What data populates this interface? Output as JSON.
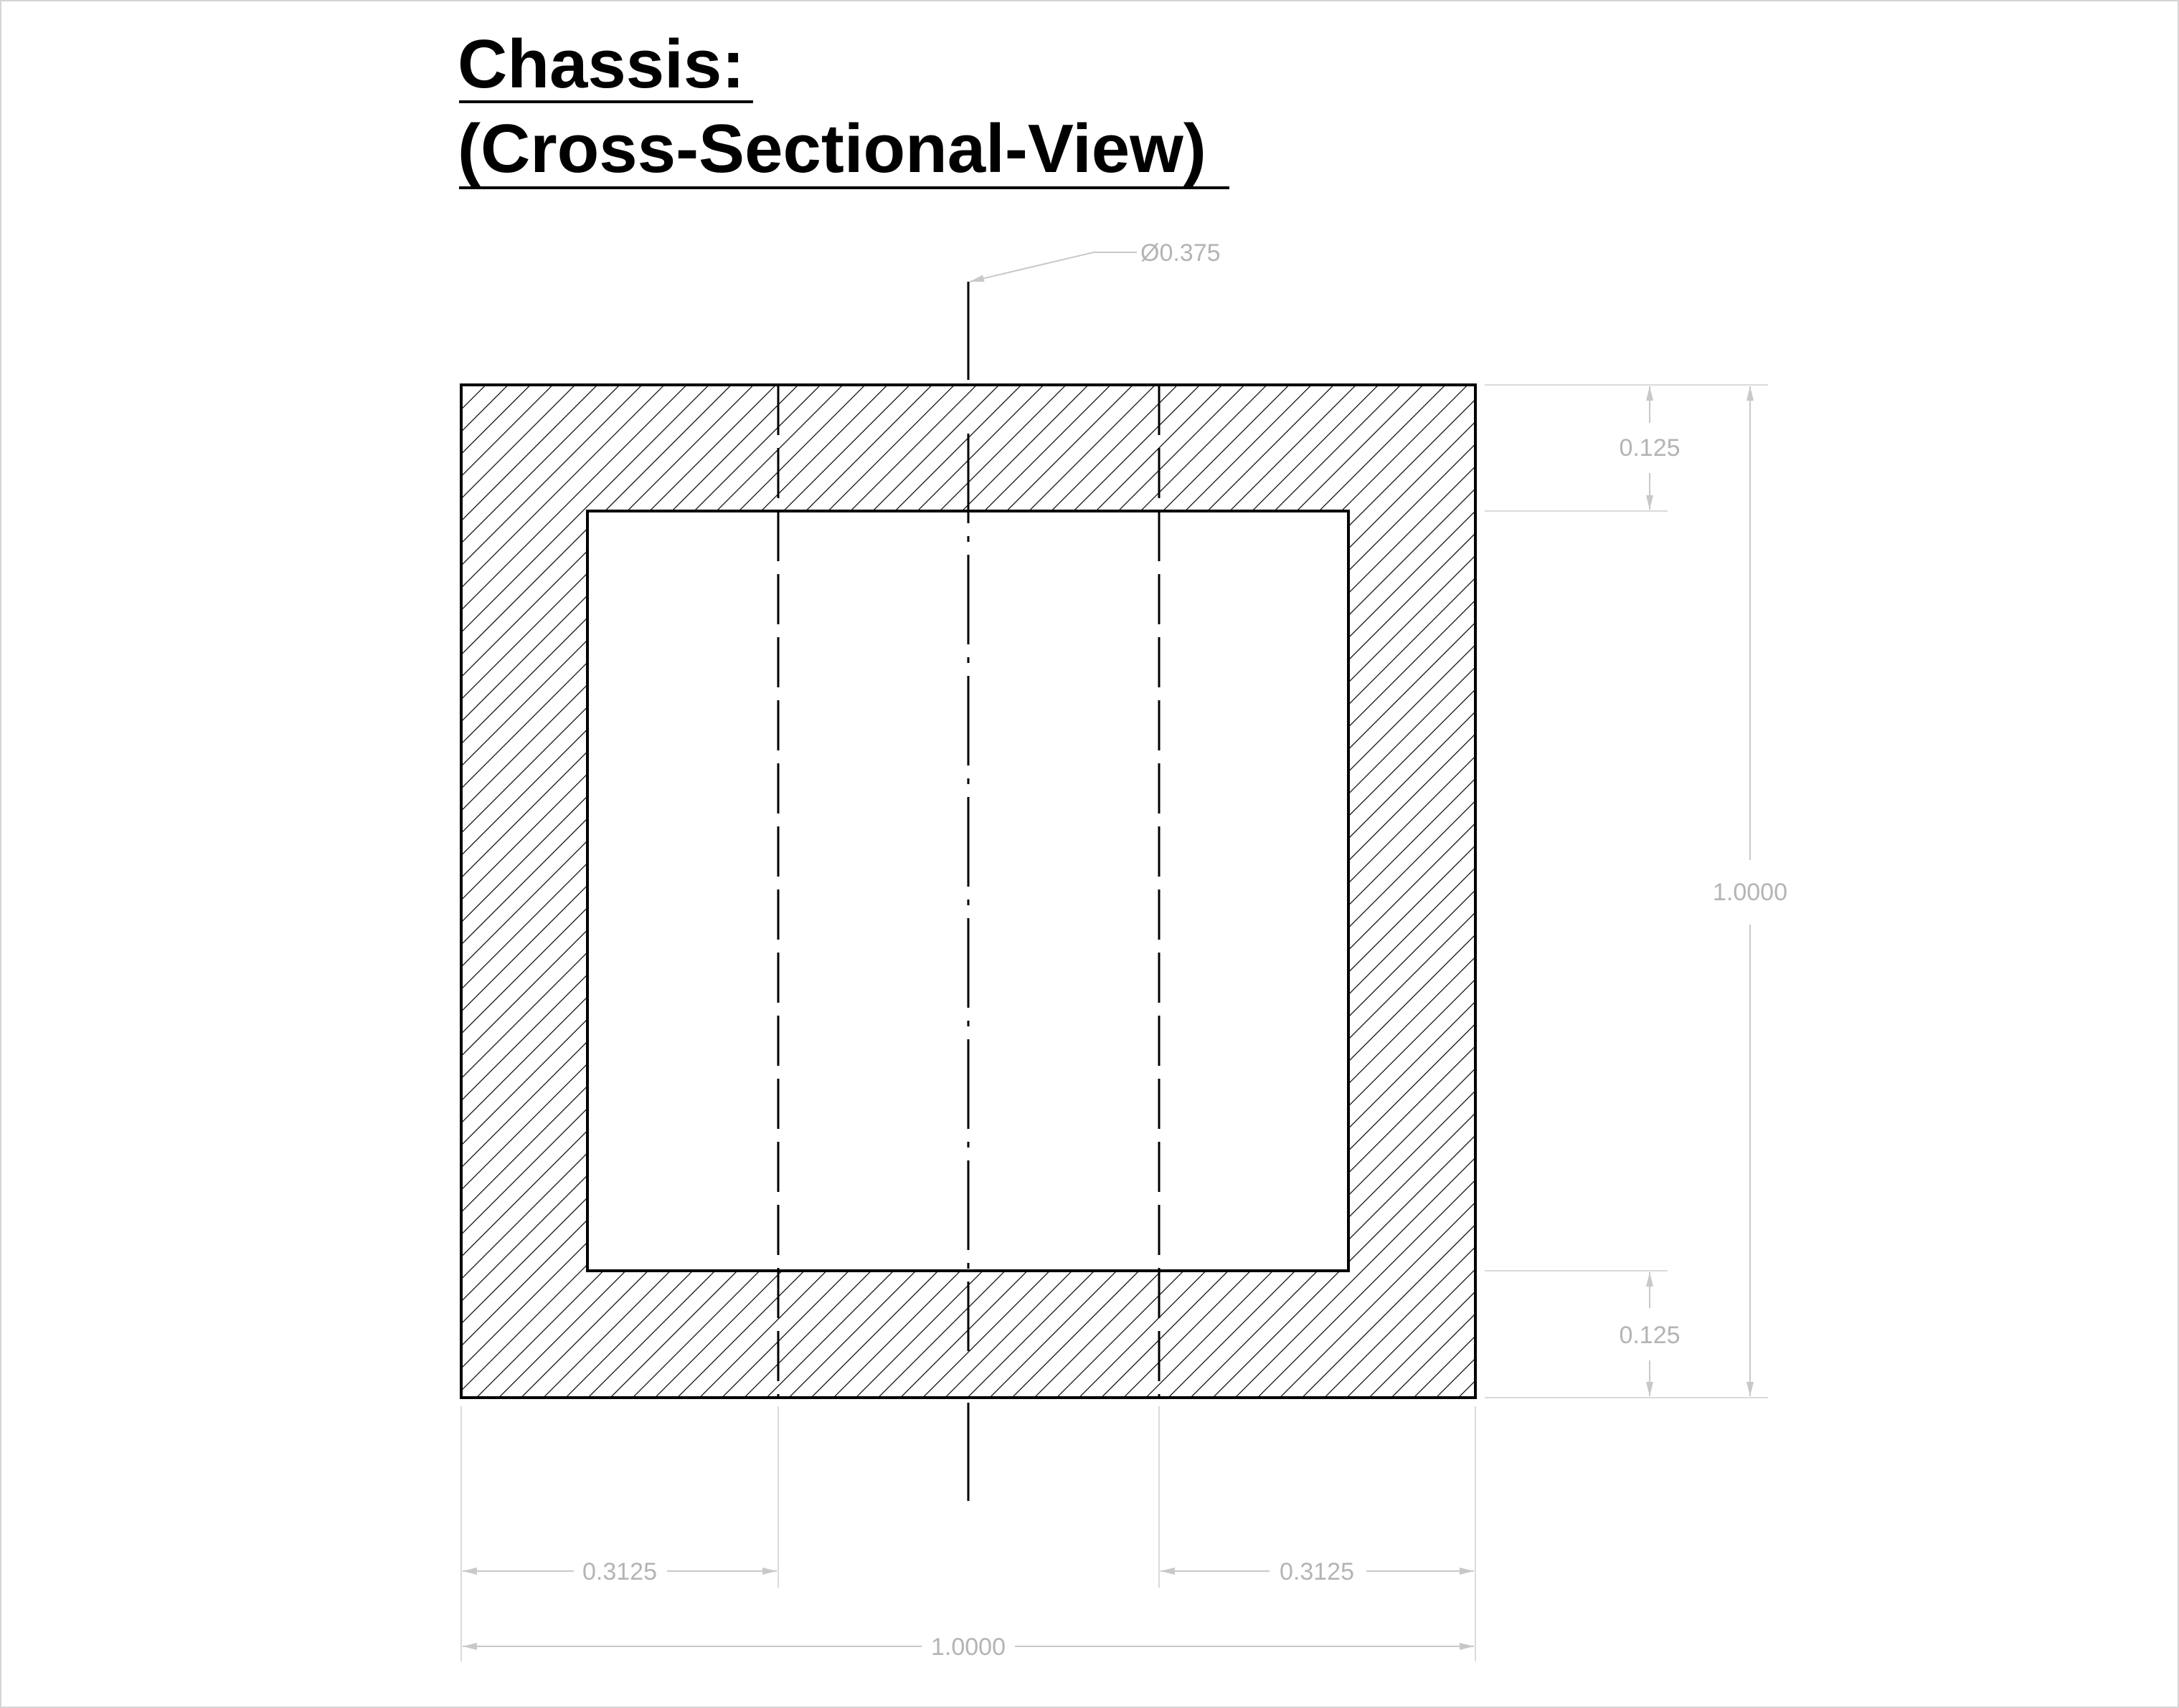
{
  "drawing": {
    "title_line_1": "Chassis:",
    "title_line_2": "(Cross-Sectional-View)",
    "callouts": {
      "hole_diameter": "Ø0.375"
    },
    "dimensions": {
      "top_wall": "0.125",
      "bottom_wall": "0.125",
      "overall_height": "1.0000",
      "left_offset": "0.3125",
      "right_offset": "0.3125",
      "overall_width": "1.0000"
    },
    "colors": {
      "outline": "#000000",
      "hatch": "#000000",
      "dimension": "#b4b4b4",
      "background": "#ffffff"
    }
  }
}
